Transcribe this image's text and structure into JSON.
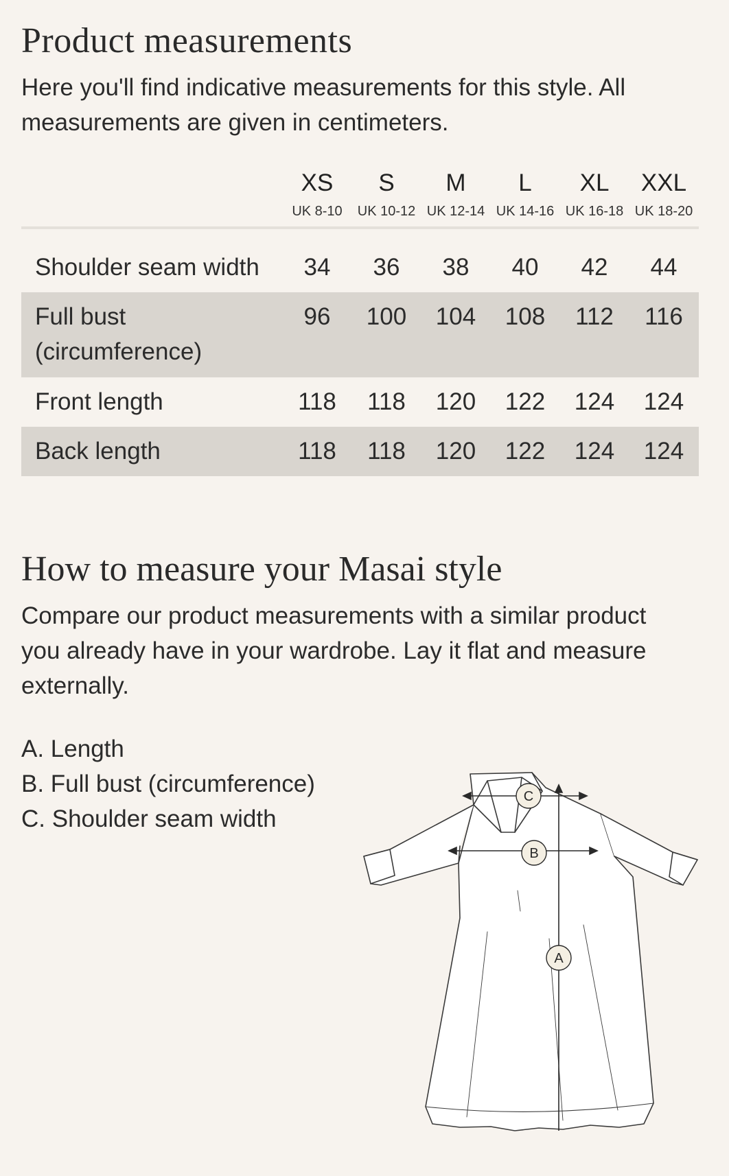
{
  "product_measurements": {
    "title": "Product measurements",
    "intro": "Here you'll find indicative measurements for this style. All measurements are given in centimeters."
  },
  "table": {
    "sizes": [
      {
        "size": "XS",
        "uk": "UK 8-10"
      },
      {
        "size": "S",
        "uk": "UK 10-12"
      },
      {
        "size": "M",
        "uk": "UK 12-14"
      },
      {
        "size": "L",
        "uk": "UK 14-16"
      },
      {
        "size": "XL",
        "uk": "UK 16-18"
      },
      {
        "size": "XXL",
        "uk": "UK 18-20"
      }
    ],
    "rows": [
      {
        "label": "Shoulder seam width",
        "values": [
          "34",
          "36",
          "38",
          "40",
          "42",
          "44"
        ]
      },
      {
        "label": "Full bust (circumference)",
        "values": [
          "96",
          "100",
          "104",
          "108",
          "112",
          "116"
        ]
      },
      {
        "label": "Front length",
        "values": [
          "118",
          "118",
          "120",
          "122",
          "124",
          "124"
        ]
      },
      {
        "label": "Back length",
        "values": [
          "118",
          "118",
          "120",
          "122",
          "124",
          "124"
        ]
      }
    ]
  },
  "how_to": {
    "title": "How to measure your Masai style",
    "text": "Compare our product measurements with a similar product you already have in your wardrobe. Lay it flat and measure externally.",
    "legend": [
      "A. Length",
      "B. Full bust (circumference)",
      "C. Shoulder seam width"
    ],
    "markers": [
      "A",
      "B",
      "C"
    ]
  },
  "colors": {
    "background": "#f7f3ee",
    "row_shade": "#d9d5cf",
    "text": "#2b2b2b"
  }
}
